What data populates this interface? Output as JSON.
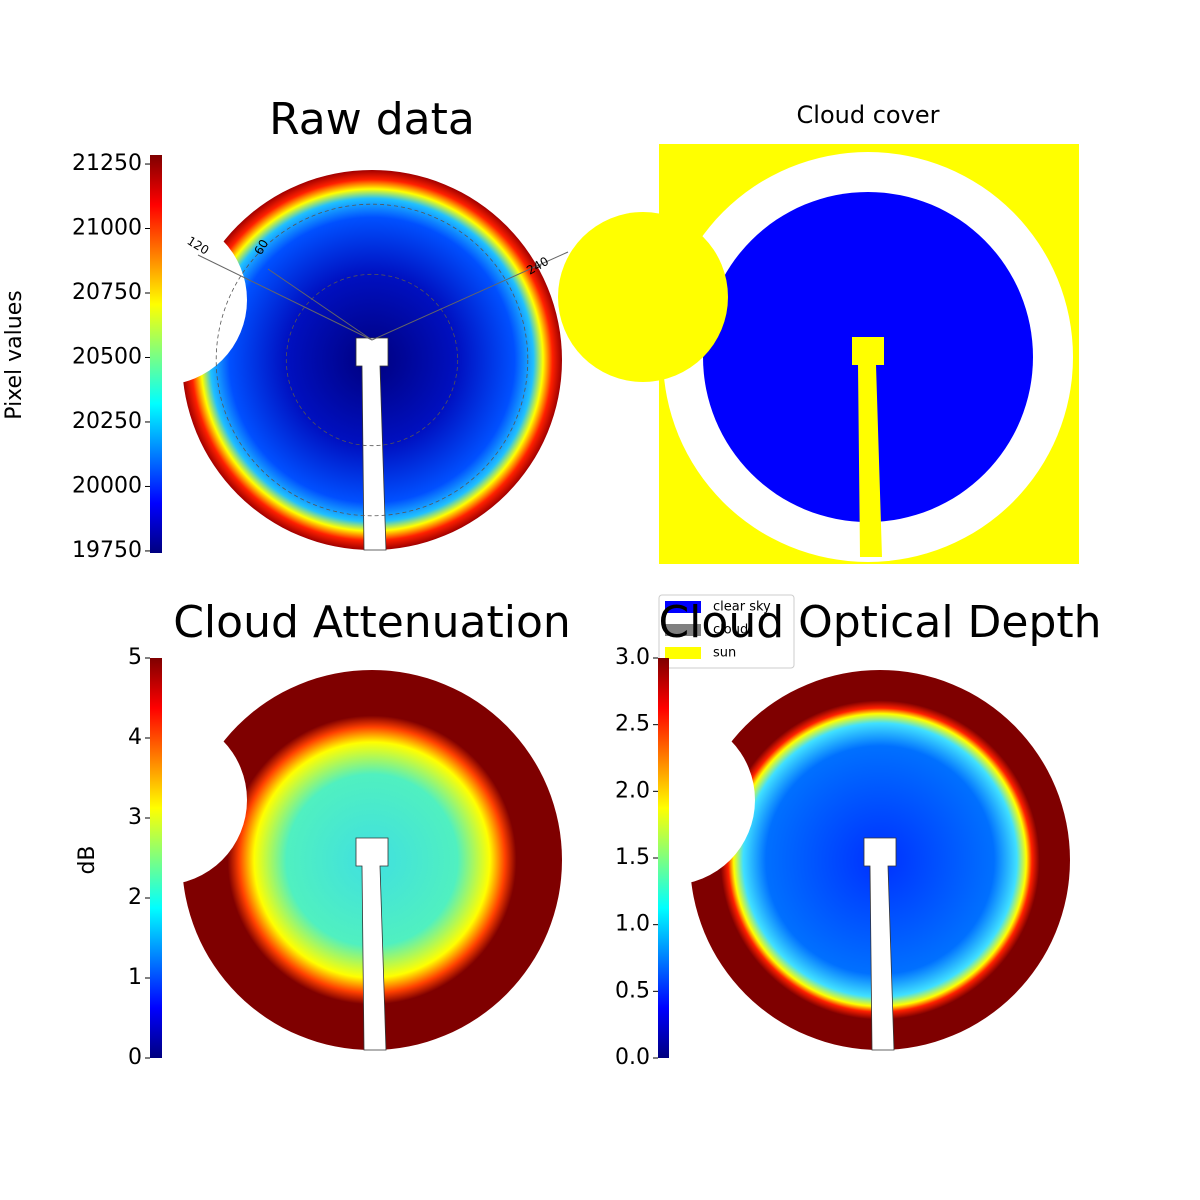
{
  "chart_data": [
    {
      "type": "heatmap",
      "title": "Raw data",
      "colormap": "jet",
      "colorbar_label": "Pixel values",
      "ylim": [
        19742,
        21285
      ],
      "yticks": [
        19750,
        20000,
        20250,
        20500,
        20750,
        21000,
        21250
      ],
      "annotations": [
        "120",
        "60",
        "240"
      ]
    },
    {
      "type": "classification",
      "title": "Cloud cover",
      "series": [
        {
          "name": "clear sky",
          "color": "#0000ff"
        },
        {
          "name": "cloud",
          "color": "#808080"
        },
        {
          "name": "sun",
          "color": "#ffff00"
        }
      ]
    },
    {
      "type": "heatmap",
      "title": "Cloud Attenuation",
      "colormap": "jet",
      "colorbar_label": "dB",
      "ylim": [
        0,
        5
      ],
      "yticks": [
        0,
        1,
        2,
        3,
        4,
        5
      ]
    },
    {
      "type": "heatmap",
      "title": "Cloud Optical Depth",
      "colormap": "jet",
      "ylim": [
        0,
        3
      ],
      "yticks": [
        {
          "value": 0,
          "label": "0.0"
        },
        {
          "value": 0.5,
          "label": "0.5"
        },
        {
          "value": 1,
          "label": "1.0"
        },
        {
          "value": 1.5,
          "label": "1.5"
        },
        {
          "value": 2,
          "label": "2.0"
        },
        {
          "value": 2.5,
          "label": "2.5"
        },
        {
          "value": 3,
          "label": "3.0"
        }
      ]
    }
  ]
}
